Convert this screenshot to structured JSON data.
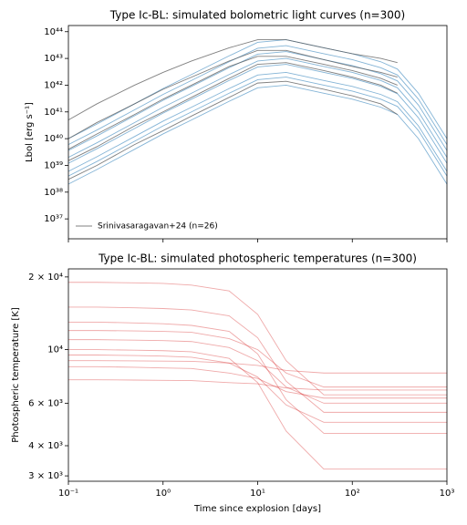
{
  "chart_data": [
    {
      "type": "line",
      "title": "Type Ic-BL: simulated bolometric light curves (n=300)",
      "y_label": "Lbol [erg s⁻¹]",
      "log_x": true,
      "log_y": true,
      "x": [
        0.1,
        0.2,
        0.5,
        1,
        2,
        5,
        10,
        20,
        50,
        100,
        200,
        300,
        500,
        1000
      ],
      "xlim": [
        0.1,
        1000
      ],
      "xticks": [
        0.1,
        1,
        10,
        100,
        1000
      ],
      "ylim": [
        1.8e+36,
        1.7e+44
      ],
      "yticks": [
        {
          "value": 1e+37,
          "label": "10³⁷"
        },
        {
          "value": 1e+38,
          "label": "10³⁸"
        },
        {
          "value": 1e+39,
          "label": "10³⁹"
        },
        {
          "value": 1e+40,
          "label": "10⁴⁰"
        },
        {
          "value": 1e+41,
          "label": "10⁴¹"
        },
        {
          "value": 1e+42,
          "label": "10⁴²"
        },
        {
          "value": 1e+43,
          "label": "10⁴³"
        },
        {
          "value": 1e+44,
          "label": "10⁴⁴"
        }
      ],
      "legend": "lower left",
      "series": [
        {
          "color": "#1f77b4",
          "curves": [
            [
              2e+39,
              7e+39,
              4e+40,
              1.5e+41,
              5e+41,
              2.5e+42,
              8e+42,
              1e+43,
              5e+42,
              3e+42,
              1.5e+42,
              8e+41,
              1e+41,
              2e+39
            ],
            [
              6e+38,
              2.1e+39,
              1.2e+40,
              4.5e+40,
              1.5e+41,
              7.5e+41,
              2.4e+42,
              3e+42,
              1.5e+42,
              9e+41,
              4.5e+41,
              2.4e+41,
              3e+40,
              6e+38
            ],
            [
              6e+39,
              2.1e+40,
              1.2e+41,
              4.5e+41,
              1.5e+42,
              7.5e+42,
              2.4e+43,
              3e+43,
              1.5e+43,
              9e+42,
              4.5e+42,
              2.4e+42,
              3e+41,
              6e+39
            ],
            [
              2e+38,
              7e+38,
              4e+39,
              1.5e+40,
              5e+40,
              2.5e+41,
              8e+41,
              1e+42,
              5e+41,
              3e+41,
              1.5e+41,
              8e+40,
              1e+40,
              2e+38
            ],
            [
              1.2e+39,
              4.2e+39,
              2.4e+40,
              9e+40,
              3e+41,
              1.5e+42,
              4.8e+42,
              6e+42,
              3e+42,
              1.8e+42,
              9e+41,
              4.8e+41,
              6e+40,
              1.2e+39
            ],
            [
              3.6e+39,
              1.26e+40,
              7.2e+40,
              2.7e+41,
              9e+41,
              4.5e+42,
              1.44e+43,
              1.8e+43,
              9e+42,
              5.4e+42,
              2.7e+42,
              1.44e+42,
              1.8e+41,
              3.6e+39
            ],
            [
              4e+38,
              1.4e+39,
              8e+39,
              3e+40,
              1e+41,
              5e+41,
              1.6e+42,
              2e+42,
              1e+42,
              6e+41,
              3e+41,
              1.6e+41,
              2e+40,
              4e+38
            ],
            [
              1e+40,
              3.5e+40,
              2e+41,
              7.5e+41,
              2.5e+42,
              1.25e+43,
              4e+43,
              5e+43,
              2.5e+43,
              1.5e+43,
              7.5e+42,
              4e+42,
              5e+41,
              1e+40
            ]
          ]
        },
        {
          "name": "Srinivasaragavan+24 (n=26)",
          "color": "#555555",
          "curves": [
            [
              1e+40,
              4e+40,
              2e+41,
              7e+41,
              2e+42,
              8e+42,
              2e+43,
              2e+43,
              9e+42,
              5e+42,
              3e+42,
              2e+42,
              null,
              null
            ],
            [
              5e+40,
              2e+41,
              1e+42,
              3e+42,
              8e+42,
              2.5e+43,
              5e+43,
              5e+43,
              2.5e+43,
              1.5e+43,
              1e+43,
              7e+42,
              null,
              null
            ],
            [
              1.5e+39,
              5e+39,
              3e+40,
              1e+41,
              3.5e+41,
              1.8e+42,
              6e+42,
              7e+42,
              3.5e+42,
              2e+42,
              1e+42,
              5e+41,
              null,
              null
            ],
            [
              3e+38,
              1e+39,
              6e+39,
              2e+40,
              7e+40,
              3.5e+41,
              1.2e+42,
              1.4e+42,
              7e+41,
              4e+41,
              2e+41,
              8e+40,
              null,
              null
            ],
            [
              4e+39,
              1.5e+40,
              8e+40,
              3e+41,
              1e+42,
              5e+42,
              1.2e+43,
              1.2e+43,
              6e+42,
              3.5e+42,
              1.8e+42,
              1e+42,
              null,
              null
            ]
          ]
        }
      ]
    },
    {
      "type": "line",
      "title": "Type Ic-BL: simulated photospheric temperatures (n=300)",
      "x_label": "Time since explosion [days]",
      "y_label": "Photospheric temperature [K]",
      "log_x": true,
      "log_y": true,
      "x": [
        0.1,
        0.2,
        0.5,
        1,
        2,
        5,
        10,
        20,
        50,
        100,
        200,
        300,
        500,
        1000
      ],
      "xlim": [
        0.1,
        1000
      ],
      "xticks": [
        {
          "value": 0.1,
          "label": "10⁻¹"
        },
        {
          "value": 1,
          "label": "10⁰"
        },
        {
          "value": 10,
          "label": "10¹"
        },
        {
          "value": 100,
          "label": "10²"
        },
        {
          "value": 1000,
          "label": "10³"
        }
      ],
      "ylim": [
        2850,
        21600
      ],
      "yticks": [
        {
          "value": 3000,
          "label": "3 × 10³"
        },
        {
          "value": 4000,
          "label": "4 × 10³"
        },
        {
          "value": 6000,
          "label": "6 × 10³"
        },
        {
          "value": 10000,
          "label": "10⁴"
        },
        {
          "value": 20000,
          "label": "2 × 10⁴"
        }
      ],
      "series": [
        {
          "color": "#d62728",
          "curves": [
            [
              19000,
              19000,
              18900,
              18800,
              18500,
              17500,
              14000,
              9000,
              6500,
              6500,
              6500,
              6500,
              6500,
              6500
            ],
            [
              15000,
              15000,
              14900,
              14800,
              14600,
              13800,
              11200,
              7400,
              5500,
              5500,
              5500,
              5500,
              5500,
              5500
            ],
            [
              12000,
              12000,
              11950,
              11900,
              11800,
              11100,
              10000,
              8000,
              7000,
              7000,
              7000,
              7000,
              7000,
              7000
            ],
            [
              11000,
              11000,
              10950,
              10900,
              10800,
              10200,
              9000,
              7000,
              6000,
              6000,
              6000,
              6000,
              6000,
              6000
            ],
            [
              9500,
              9500,
              9450,
              9400,
              9300,
              8800,
              7700,
              5900,
              5000,
              5000,
              5000,
              5000,
              5000,
              5000
            ],
            [
              9000,
              9000,
              8980,
              8960,
              8940,
              8800,
              8600,
              8200,
              8000,
              8000,
              8000,
              8000,
              8000,
              8000
            ],
            [
              8500,
              8500,
              8450,
              8400,
              8350,
              8000,
              7600,
              6700,
              6300,
              6300,
              6300,
              6300,
              6300,
              6300
            ],
            [
              13000,
              13000,
              12900,
              12800,
              12600,
              11900,
              9600,
              6200,
              4500,
              4500,
              4500,
              4500,
              4500,
              4500
            ],
            [
              10000,
              10000,
              9950,
              9900,
              9800,
              9200,
              7300,
              4600,
              3200,
              3200,
              3200,
              3200,
              3200,
              3200
            ],
            [
              7500,
              7500,
              7480,
              7460,
              7440,
              7300,
              7220,
              6940,
              6800,
              6800,
              6800,
              6800,
              6800,
              6800
            ]
          ]
        }
      ]
    }
  ]
}
